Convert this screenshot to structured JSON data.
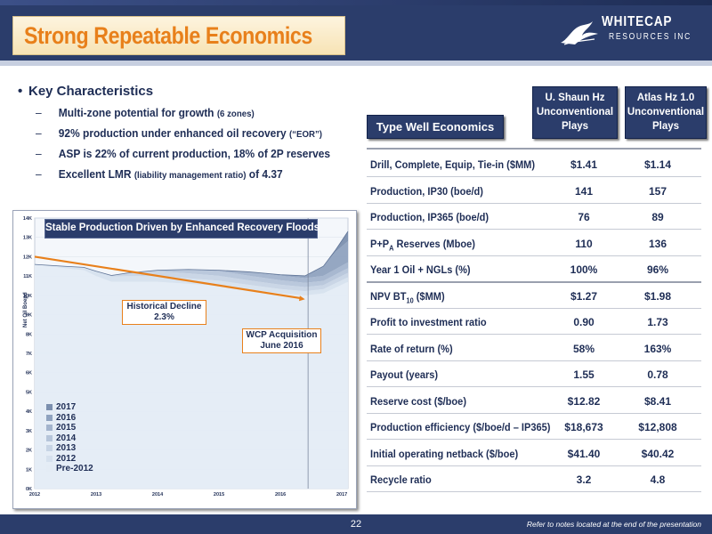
{
  "header": {
    "title": "Strong Repeatable Economics",
    "logo_line1": "WHITECAP",
    "logo_line2": "RESOURCES INC"
  },
  "bullets": {
    "heading": "Key Characteristics",
    "items": [
      {
        "main": "Multi-zone potential for growth",
        "note": "(6 zones)",
        "tail": ""
      },
      {
        "main": "92% production under enhanced oil recovery",
        "note": "(“EOR”)",
        "tail": ""
      },
      {
        "main": "ASP is 22% of current production, 18% of 2P reserves",
        "note": "",
        "tail": ""
      },
      {
        "main": "Excellent LMR",
        "note": "(liability management ratio)",
        "tail": "of 4.37"
      }
    ]
  },
  "chart": {
    "banner": "Stable Production Driven by Enhanced Recovery Floods",
    "ylabel": "Net Oil Boepd",
    "callout_decline_line1": "Historical Decline",
    "callout_decline_line2": "2.3%",
    "callout_acq_line1": "WCP Acquisition",
    "callout_acq_line2": "June 2016",
    "legend": [
      {
        "label": "2017",
        "color": "#7b8fae"
      },
      {
        "label": "2016",
        "color": "#8fa2bf"
      },
      {
        "label": "2015",
        "color": "#a3b4cd"
      },
      {
        "label": "2014",
        "color": "#b6c5da"
      },
      {
        "label": "2013",
        "color": "#c7d4e5"
      },
      {
        "label": "2012",
        "color": "#d6e1ee"
      },
      {
        "label": "Pre-2012",
        "color": "#e4ecf5"
      }
    ]
  },
  "chart_data": {
    "type": "area",
    "title": "Stable Production Driven by Enhanced Recovery Floods",
    "ylabel": "Net Oil Boepd",
    "x_ticks": [
      "2012",
      "2013",
      "2014",
      "2015",
      "2016",
      "2017"
    ],
    "y_ticks": [
      "0K",
      "1K",
      "2K",
      "3K",
      "4K",
      "5K",
      "6K",
      "7K",
      "8K",
      "9K",
      "10K",
      "11K",
      "12K",
      "13K",
      "14K"
    ],
    "ylim": [
      0,
      14000
    ],
    "x": [
      2012.0,
      2012.5,
      2012.8,
      2013.0,
      2013.25,
      2013.5,
      2014.0,
      2014.5,
      2015.0,
      2015.5,
      2016.0,
      2016.4,
      2016.7,
      2016.9,
      2017.1
    ],
    "stack_order": [
      "Pre-2012",
      "2012",
      "2013",
      "2014",
      "2015",
      "2016",
      "2017"
    ],
    "series": [
      {
        "name": "Pre-2012",
        "values": [
          11600,
          11400,
          11300,
          11000,
          10700,
          10700,
          10700,
          10600,
          10500,
          10300,
          10100,
          10000,
          10100,
          10400,
          10700
        ]
      },
      {
        "name": "2012",
        "values": [
          0,
          100,
          150,
          250,
          280,
          300,
          300,
          280,
          260,
          240,
          230,
          220,
          220,
          230,
          240
        ]
      },
      {
        "name": "2013",
        "values": [
          0,
          0,
          0,
          0,
          50,
          150,
          250,
          260,
          250,
          230,
          220,
          210,
          210,
          220,
          230
        ]
      },
      {
        "name": "2014",
        "values": [
          0,
          0,
          0,
          0,
          0,
          0,
          50,
          200,
          240,
          240,
          230,
          220,
          220,
          230,
          240
        ]
      },
      {
        "name": "2015",
        "values": [
          0,
          0,
          0,
          0,
          0,
          0,
          0,
          0,
          50,
          200,
          240,
          240,
          260,
          280,
          300
        ]
      },
      {
        "name": "2016",
        "values": [
          0,
          0,
          0,
          0,
          0,
          0,
          0,
          0,
          0,
          0,
          50,
          120,
          500,
          900,
          1100
        ]
      },
      {
        "name": "2017",
        "values": [
          0,
          0,
          0,
          0,
          0,
          0,
          0,
          0,
          0,
          0,
          0,
          0,
          0,
          100,
          500
        ]
      }
    ],
    "trend_line": {
      "name": "Historical Decline",
      "x": [
        2012.0,
        2016.4
      ],
      "y": [
        12000,
        9800
      ]
    },
    "markers": [
      {
        "x": 2016.45,
        "label": "WCP Acquisition June 2016"
      }
    ],
    "legend_position": "bottom-left",
    "grid": true
  },
  "table": {
    "title": "Type Well Economics",
    "col1_header": [
      "U. Shaun Hz",
      "Unconventional",
      "Plays"
    ],
    "col2_header": [
      "Atlas Hz 1.0",
      "Unconventional",
      "Plays"
    ],
    "rows": [
      {
        "label": "Drill, Complete, Equip, Tie-in ($MM)",
        "v1": "$1.41",
        "v2": "$1.14"
      },
      {
        "label": "Production, IP30 (boe/d)",
        "v1": "141",
        "v2": "157"
      },
      {
        "label": "Production, IP365 (boe/d)",
        "v1": "76",
        "v2": "89"
      },
      {
        "label_prefix": "P+P",
        "label_sub": "A",
        "label_suffix": " Reserves (Mboe)",
        "v1": "110",
        "v2": "136"
      },
      {
        "label": "Year 1 Oil + NGLs (%)",
        "v1": "100%",
        "v2": "96%"
      },
      {
        "label_prefix": "NPV BT",
        "label_sub": "10",
        "label_suffix": " ($MM)",
        "v1": "$1.27",
        "v2": "$1.98"
      },
      {
        "label": "Profit to investment ratio",
        "v1": "0.90",
        "v2": "1.73"
      },
      {
        "label": "Rate of return (%)",
        "v1": "58%",
        "v2": "163%"
      },
      {
        "label": "Payout (years)",
        "v1": "1.55",
        "v2": "0.78"
      },
      {
        "label": "Reserve cost ($/boe)",
        "v1": "$12.82",
        "v2": "$8.41"
      },
      {
        "label": "Production efficiency ($/boe/d – IP365)",
        "v1": "$18,673",
        "v2": "$12,808"
      },
      {
        "label": "Initial operating netback ($/boe)",
        "v1": "$41.40",
        "v2": "$40.42"
      },
      {
        "label": "Recycle ratio",
        "v1": "3.2",
        "v2": "4.8"
      }
    ]
  },
  "footer": {
    "page_number": "22",
    "note": "Refer to notes located at the end of the presentation"
  }
}
